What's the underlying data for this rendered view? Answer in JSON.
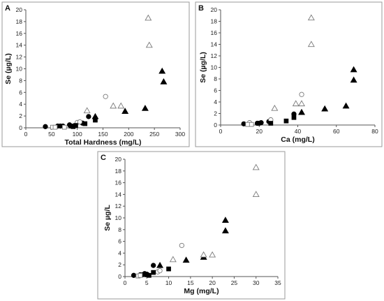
{
  "chart_data": [
    {
      "type": "scatter",
      "panel_label": "A",
      "xlabel": "Total Hardness (mg/L)",
      "ylabel": "Se (µg/L)",
      "xlim": [
        0,
        300
      ],
      "ylim": [
        0,
        20
      ],
      "xticks": [
        0,
        50,
        100,
        150,
        200,
        250,
        300
      ],
      "yticks": [
        0,
        2,
        4,
        6,
        8,
        10,
        12,
        14,
        16,
        18,
        20
      ],
      "series": [
        {
          "marker": "filled-circle",
          "points": [
            [
              38,
              0.2
            ],
            [
              62,
              0.3
            ],
            [
              67,
              0.3
            ],
            [
              72,
              0.3
            ],
            [
              85,
              0.5
            ],
            [
              110,
              0.8
            ],
            [
              122,
              1.9
            ]
          ]
        },
        {
          "marker": "open-circle",
          "points": [
            [
              100,
              0.9
            ],
            [
              105,
              1.0
            ],
            [
              155,
              5.3
            ]
          ]
        },
        {
          "marker": "filled-square",
          "points": [
            [
              88,
              0.3
            ],
            [
              92,
              0.2
            ],
            [
              97,
              0.4
            ],
            [
              115,
              0.7
            ],
            [
              135,
              1.3
            ]
          ]
        },
        {
          "marker": "open-square",
          "points": [
            [
              52,
              0.1
            ],
            [
              57,
              0.1
            ],
            [
              75,
              0.1
            ]
          ]
        },
        {
          "marker": "filled-triangle",
          "points": [
            [
              135,
              1.9
            ],
            [
              193,
              2.8
            ],
            [
              232,
              3.3
            ],
            [
              265,
              9.6
            ],
            [
              268,
              7.8
            ]
          ]
        },
        {
          "marker": "open-triangle",
          "points": [
            [
              119,
              2.9
            ],
            [
              170,
              3.7
            ],
            [
              185,
              3.7
            ],
            [
              238,
              18.6
            ],
            [
              240,
              14.0
            ]
          ]
        }
      ]
    },
    {
      "type": "scatter",
      "panel_label": "B",
      "xlabel": "Ca (mg/L)",
      "ylabel": "Se (µg/L)",
      "xlim": [
        0,
        80
      ],
      "ylim": [
        0,
        20
      ],
      "xticks": [
        0,
        20,
        40,
        60,
        80
      ],
      "yticks": [
        0,
        2,
        4,
        6,
        8,
        10,
        12,
        14,
        16,
        18,
        20
      ],
      "series": [
        {
          "marker": "filled-circle",
          "points": [
            [
              12,
              0.2
            ],
            [
              19,
              0.3
            ],
            [
              20,
              0.3
            ],
            [
              21,
              0.4
            ],
            [
              25,
              0.6
            ],
            [
              38,
              1.9
            ]
          ]
        },
        {
          "marker": "open-circle",
          "points": [
            [
              26,
              0.9
            ],
            [
              42,
              5.3
            ],
            [
              15,
              0.4
            ]
          ]
        },
        {
          "marker": "filled-square",
          "points": [
            [
              26,
              0.3
            ],
            [
              34,
              0.7
            ],
            [
              38,
              1.3
            ]
          ]
        },
        {
          "marker": "open-square",
          "points": [
            [
              14,
              0.1
            ],
            [
              16,
              0.1
            ]
          ]
        },
        {
          "marker": "filled-triangle",
          "points": [
            [
              42,
              2.2
            ],
            [
              54,
              2.8
            ],
            [
              65,
              3.3
            ],
            [
              69,
              9.6
            ],
            [
              69,
              7.8
            ]
          ]
        },
        {
          "marker": "open-triangle",
          "points": [
            [
              28,
              2.9
            ],
            [
              39,
              3.7
            ],
            [
              42,
              3.7
            ],
            [
              47,
              18.6
            ],
            [
              47,
              14.0
            ]
          ]
        }
      ]
    },
    {
      "type": "scatter",
      "panel_label": "C",
      "xlabel": "Mg (mg/L)",
      "ylabel": "Se µg/L",
      "xlim": [
        0,
        35
      ],
      "ylim": [
        0,
        20
      ],
      "xticks": [
        0,
        5,
        10,
        15,
        20,
        25,
        30,
        35
      ],
      "yticks": [
        0,
        2,
        4,
        6,
        8,
        10,
        12,
        14,
        16,
        18,
        20
      ],
      "series": [
        {
          "marker": "filled-circle",
          "points": [
            [
              2,
              0.2
            ],
            [
              3.5,
              0.3
            ],
            [
              4,
              0.3
            ],
            [
              4.5,
              0.5
            ],
            [
              5,
              0.4
            ],
            [
              6.5,
              1.9
            ]
          ]
        },
        {
          "marker": "open-circle",
          "points": [
            [
              7.5,
              0.8
            ],
            [
              8,
              1.0
            ],
            [
              13,
              5.3
            ]
          ]
        },
        {
          "marker": "filled-square",
          "points": [
            [
              5,
              0.3
            ],
            [
              5.5,
              0.2
            ],
            [
              6.5,
              0.7
            ],
            [
              10,
              1.3
            ]
          ]
        },
        {
          "marker": "open-square",
          "points": [
            [
              3,
              0.1
            ],
            [
              3.5,
              0.2
            ]
          ]
        },
        {
          "marker": "filled-triangle",
          "points": [
            [
              8,
              1.9
            ],
            [
              14,
              2.8
            ],
            [
              18,
              3.3
            ],
            [
              23,
              9.6
            ],
            [
              23,
              7.8
            ]
          ]
        },
        {
          "marker": "open-triangle",
          "points": [
            [
              11,
              2.9
            ],
            [
              18,
              3.7
            ],
            [
              20,
              3.7
            ],
            [
              30,
              18.6
            ],
            [
              30,
              14.0
            ]
          ]
        }
      ]
    }
  ]
}
